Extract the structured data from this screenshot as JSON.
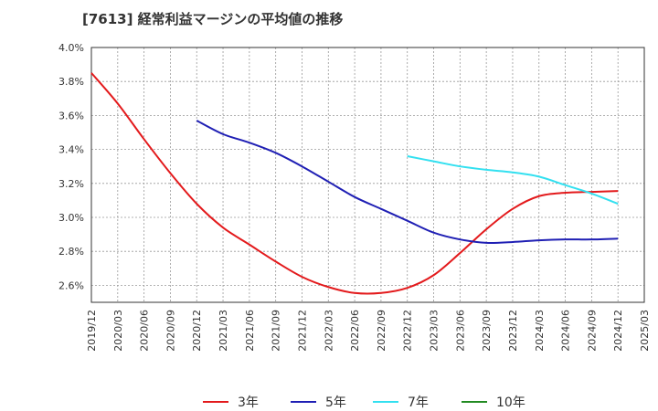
{
  "chart_data": {
    "type": "line",
    "title": "[7613]  経常利益マージンの平均値の推移",
    "xlabel": "",
    "ylabel": "",
    "x_ticks": [
      "2019/12",
      "2020/03",
      "2020/06",
      "2020/09",
      "2020/12",
      "2021/03",
      "2021/06",
      "2021/09",
      "2021/12",
      "2022/03",
      "2022/06",
      "2022/09",
      "2022/12",
      "2023/03",
      "2023/06",
      "2023/09",
      "2023/12",
      "2024/03",
      "2024/06",
      "2024/09",
      "2024/12",
      "2025/03"
    ],
    "y_ticks": [
      "2.6%",
      "2.8%",
      "3.0%",
      "3.2%",
      "3.4%",
      "3.6%",
      "3.8%",
      "4.0%"
    ],
    "ylim": [
      2.5,
      4.0
    ],
    "grid": true,
    "legend_position": "bottom",
    "series": [
      {
        "name": "3年",
        "color": "#e31a1c",
        "x": [
          "2019/12",
          "2020/03",
          "2020/06",
          "2020/09",
          "2020/12",
          "2021/03",
          "2021/06",
          "2021/09",
          "2021/12",
          "2022/03",
          "2022/06",
          "2022/09",
          "2022/12",
          "2023/03",
          "2023/06",
          "2023/09",
          "2023/12",
          "2024/03",
          "2024/06",
          "2024/09",
          "2024/12"
        ],
        "values": [
          3.85,
          3.67,
          3.46,
          3.26,
          3.08,
          2.94,
          2.84,
          2.74,
          2.65,
          2.59,
          2.555,
          2.555,
          2.585,
          2.66,
          2.79,
          2.93,
          3.05,
          3.125,
          3.145,
          3.15,
          3.155
        ]
      },
      {
        "name": "5年",
        "color": "#1f1fb4",
        "x": [
          "2020/12",
          "2021/03",
          "2021/06",
          "2021/09",
          "2021/12",
          "2022/03",
          "2022/06",
          "2022/09",
          "2022/12",
          "2023/03",
          "2023/06",
          "2023/09",
          "2023/12",
          "2024/03",
          "2024/06",
          "2024/09",
          "2024/12"
        ],
        "values": [
          3.57,
          3.49,
          3.44,
          3.38,
          3.3,
          3.21,
          3.12,
          3.05,
          2.98,
          2.91,
          2.87,
          2.85,
          2.855,
          2.865,
          2.87,
          2.87,
          2.875
        ]
      },
      {
        "name": "7年",
        "color": "#33e0f0",
        "x": [
          "2022/12",
          "2023/03",
          "2023/06",
          "2023/09",
          "2023/12",
          "2024/03",
          "2024/06",
          "2024/09",
          "2024/12"
        ],
        "values": [
          3.36,
          3.33,
          3.3,
          3.28,
          3.265,
          3.24,
          3.19,
          3.14,
          3.08
        ]
      },
      {
        "name": "10年",
        "color": "#228b22",
        "x": [],
        "values": []
      }
    ]
  }
}
